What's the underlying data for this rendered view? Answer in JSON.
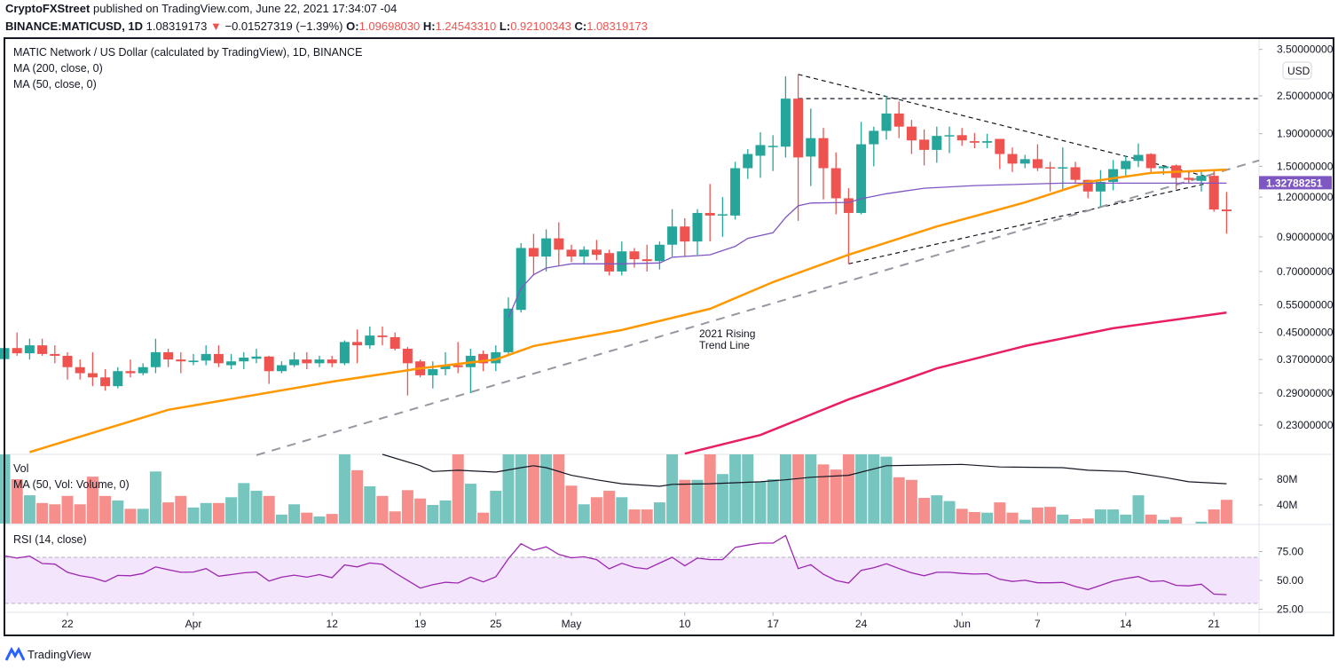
{
  "header": {
    "publisher": "CryptoFXStreet",
    "published_text": "published on TradingView.com, June 22, 2021 17:34:07 -04",
    "symbol": "BINANCE:MATICUSD, 1D",
    "last": "1.08319173",
    "change": "−0.01527319 (−1.39%)",
    "o_label": "O:",
    "o": "1.09698030",
    "h_label": "H:",
    "h": "1.24543310",
    "l_label": "L:",
    "l": "0.92100343",
    "c_label": "C:",
    "c": "1.08319173",
    "down_arrow": "▼"
  },
  "legend": {
    "title": "MATIC Network / US Dollar (calculated by TradingView), 1D, BINANCE",
    "ma200": "MA (200, close, 0)",
    "ma50": "MA (50, close, 0)",
    "vol": "Vol",
    "vol_ma": "MA (50, Vol: Volume, 0)",
    "rsi": "RSI (14, close)"
  },
  "colors": {
    "up": "#26a69a",
    "down": "#ef5350",
    "vol_up": "#76c6bf",
    "vol_down": "#f68f8c",
    "ma50": "#ff9800",
    "ma200": "#e91e63",
    "ma_purple": "#7e57c2",
    "vol_ma": "#131722",
    "rsi": "#9c27b0",
    "rsi_band": "#f3e5fc",
    "price_label_bg": "#7e57c2"
  },
  "chart_data": {
    "type": "candlestick",
    "price_scale": "log",
    "currency_badge": "USD",
    "price_ticks": [
      "3.50000000",
      "2.50000000",
      "1.90000000",
      "1.50000000",
      "1.20000000",
      "0.90000000",
      "0.70000000",
      "0.55000000",
      "0.45000000",
      "0.37000000",
      "0.29000000",
      "0.23000000"
    ],
    "price_label": "1.32788251",
    "time_ticks": [
      {
        "date": "2021-03-22",
        "label": "22"
      },
      {
        "date": "2021-04-01",
        "label": "Apr"
      },
      {
        "date": "2021-04-12",
        "label": "12"
      },
      {
        "date": "2021-04-19",
        "label": "19"
      },
      {
        "date": "2021-04-25",
        "label": "25"
      },
      {
        "date": "2021-05-01",
        "label": "May"
      },
      {
        "date": "2021-05-10",
        "label": "10"
      },
      {
        "date": "2021-05-17",
        "label": "17"
      },
      {
        "date": "2021-05-24",
        "label": "24"
      },
      {
        "date": "2021-06-01",
        "label": "Jun"
      },
      {
        "date": "2021-06-07",
        "label": "7"
      },
      {
        "date": "2021-06-14",
        "label": "14"
      },
      {
        "date": "2021-06-21",
        "label": "21"
      }
    ],
    "volume_ticks": [
      "80M",
      "40M"
    ],
    "rsi_ticks": [
      "75.00",
      "50.00",
      "25.00"
    ],
    "rsi_band": [
      30,
      70
    ],
    "columns": [
      "date",
      "open",
      "high",
      "low",
      "close",
      "volume_millions",
      "rsi"
    ],
    "candles": [
      [
        "2021-03-17",
        0.371,
        0.405,
        0.37,
        0.402,
        130,
        71.2
      ],
      [
        "2021-03-18",
        0.402,
        0.45,
        0.38,
        0.387,
        80,
        69.3
      ],
      [
        "2021-03-19",
        0.387,
        0.43,
        0.37,
        0.41,
        55,
        71.0
      ],
      [
        "2021-03-20",
        0.41,
        0.43,
        0.38,
        0.385,
        43,
        64.6
      ],
      [
        "2021-03-21",
        0.385,
        0.41,
        0.36,
        0.38,
        41,
        64.1
      ],
      [
        "2021-03-22",
        0.38,
        0.39,
        0.32,
        0.35,
        54,
        57.0
      ],
      [
        "2021-03-23",
        0.35,
        0.37,
        0.32,
        0.335,
        41,
        54.0
      ],
      [
        "2021-03-24",
        0.335,
        0.39,
        0.305,
        0.325,
        84,
        52.3
      ],
      [
        "2021-03-25",
        0.325,
        0.345,
        0.295,
        0.305,
        54,
        48.9
      ],
      [
        "2021-03-26",
        0.305,
        0.35,
        0.3,
        0.34,
        47,
        54.3
      ],
      [
        "2021-03-27",
        0.34,
        0.37,
        0.325,
        0.335,
        34,
        54.0
      ],
      [
        "2021-03-28",
        0.335,
        0.36,
        0.33,
        0.35,
        34,
        56.0
      ],
      [
        "2021-03-29",
        0.35,
        0.43,
        0.335,
        0.39,
        92,
        61.7
      ],
      [
        "2021-03-30",
        0.39,
        0.4,
        0.35,
        0.37,
        44,
        59.2
      ],
      [
        "2021-03-31",
        0.37,
        0.39,
        0.335,
        0.365,
        54,
        57.0
      ],
      [
        "2021-04-01",
        0.363,
        0.385,
        0.355,
        0.367,
        36,
        57.2
      ],
      [
        "2021-04-02",
        0.367,
        0.41,
        0.355,
        0.385,
        43,
        60.2
      ],
      [
        "2021-04-03",
        0.385,
        0.41,
        0.35,
        0.36,
        43,
        53.6
      ],
      [
        "2021-04-04",
        0.355,
        0.385,
        0.345,
        0.365,
        52,
        55.0
      ],
      [
        "2021-04-05",
        0.365,
        0.39,
        0.345,
        0.375,
        74,
        56.5
      ],
      [
        "2021-04-06",
        0.372,
        0.4,
        0.36,
        0.378,
        62,
        57.2
      ],
      [
        "2021-04-07",
        0.378,
        0.38,
        0.31,
        0.34,
        54,
        49.4
      ],
      [
        "2021-04-08",
        0.34,
        0.365,
        0.335,
        0.355,
        25,
        52.8
      ],
      [
        "2021-04-09",
        0.355,
        0.39,
        0.35,
        0.37,
        41,
        54.5
      ],
      [
        "2021-04-10",
        0.37,
        0.39,
        0.345,
        0.36,
        28,
        52.8
      ],
      [
        "2021-04-11",
        0.36,
        0.38,
        0.35,
        0.37,
        22,
        55.0
      ],
      [
        "2021-04-12",
        0.37,
        0.38,
        0.35,
        0.36,
        26,
        52.3
      ],
      [
        "2021-04-13",
        0.36,
        0.425,
        0.355,
        0.42,
        140,
        63.4
      ],
      [
        "2021-04-14",
        0.42,
        0.46,
        0.36,
        0.41,
        94,
        61.7
      ],
      [
        "2021-04-15",
        0.41,
        0.47,
        0.4,
        0.44,
        69,
        65.1
      ],
      [
        "2021-04-16",
        0.44,
        0.47,
        0.41,
        0.435,
        54,
        63.9
      ],
      [
        "2021-04-17",
        0.435,
        0.45,
        0.395,
        0.4,
        30,
        56.5
      ],
      [
        "2021-04-18",
        0.4,
        0.405,
        0.285,
        0.36,
        63,
        49.9
      ],
      [
        "2021-04-19",
        0.365,
        0.37,
        0.325,
        0.33,
        50,
        43.3
      ],
      [
        "2021-04-20",
        0.33,
        0.365,
        0.3,
        0.345,
        40,
        46.2
      ],
      [
        "2021-04-21",
        0.345,
        0.39,
        0.33,
        0.355,
        47,
        48.4
      ],
      [
        "2021-04-22",
        0.355,
        0.42,
        0.335,
        0.35,
        140,
        47.7
      ],
      [
        "2021-04-23",
        0.35,
        0.4,
        0.29,
        0.38,
        73,
        52.8
      ],
      [
        "2021-04-24",
        0.385,
        0.395,
        0.34,
        0.36,
        28,
        48.7
      ],
      [
        "2021-04-25",
        0.36,
        0.41,
        0.34,
        0.39,
        62,
        53.1
      ],
      [
        "2021-04-26",
        0.39,
        0.58,
        0.385,
        0.535,
        250,
        68.8
      ],
      [
        "2021-04-27",
        0.53,
        0.86,
        0.52,
        0.83,
        200,
        81.8
      ],
      [
        "2021-04-28",
        0.83,
        0.92,
        0.68,
        0.78,
        170,
        76.1
      ],
      [
        "2021-04-29",
        0.78,
        0.95,
        0.7,
        0.89,
        130,
        79.1
      ],
      [
        "2021-04-30",
        0.89,
        1.0,
        0.73,
        0.82,
        125,
        72.5
      ],
      [
        "2021-05-01",
        0.82,
        0.85,
        0.75,
        0.78,
        70,
        69.5
      ],
      [
        "2021-05-02",
        0.78,
        0.84,
        0.74,
        0.82,
        41,
        70.5
      ],
      [
        "2021-05-03",
        0.82,
        0.88,
        0.76,
        0.79,
        52,
        68.0
      ],
      [
        "2021-05-04",
        0.8,
        0.82,
        0.68,
        0.7,
        62,
        60.0
      ],
      [
        "2021-05-05",
        0.7,
        0.87,
        0.68,
        0.81,
        52,
        64.8
      ],
      [
        "2021-05-06",
        0.81,
        0.83,
        0.72,
        0.765,
        33,
        61.2
      ],
      [
        "2021-05-07",
        0.765,
        0.85,
        0.7,
        0.755,
        33,
        59.9
      ],
      [
        "2021-05-08",
        0.755,
        0.87,
        0.71,
        0.85,
        44,
        65.0
      ],
      [
        "2021-05-09",
        0.85,
        1.1,
        0.78,
        0.97,
        150,
        70.0
      ],
      [
        "2021-05-10",
        0.97,
        1.03,
        0.78,
        0.87,
        79,
        62.6
      ],
      [
        "2021-05-11",
        0.87,
        1.1,
        0.79,
        1.07,
        79,
        69.3
      ],
      [
        "2021-05-12",
        1.07,
        1.32,
        0.87,
        1.05,
        125,
        68.0
      ],
      [
        "2021-05-13",
        1.05,
        1.2,
        0.9,
        1.06,
        88,
        68.0
      ],
      [
        "2021-05-14",
        1.05,
        1.55,
        1.02,
        1.48,
        160,
        78.6
      ],
      [
        "2021-05-15",
        1.48,
        1.7,
        1.37,
        1.64,
        140,
        80.6
      ],
      [
        "2021-05-16",
        1.62,
        1.92,
        1.38,
        1.75,
        76,
        82.3
      ],
      [
        "2021-05-17",
        1.73,
        1.88,
        1.45,
        1.74,
        80,
        82.3
      ],
      [
        "2021-05-18",
        1.73,
        2.88,
        1.6,
        2.45,
        220,
        88.9
      ],
      [
        "2021-05-19",
        2.45,
        2.92,
        1.01,
        1.6,
        300,
        60.2
      ],
      [
        "2021-05-20",
        1.61,
        2.28,
        1.3,
        1.84,
        180,
        63.6
      ],
      [
        "2021-05-21",
        1.84,
        1.98,
        1.18,
        1.48,
        103,
        55.3
      ],
      [
        "2021-05-22",
        1.48,
        1.66,
        1.06,
        1.19,
        95,
        49.9
      ],
      [
        "2021-05-23",
        1.19,
        1.28,
        0.74,
        1.07,
        180,
        47.7
      ],
      [
        "2021-05-24",
        1.07,
        2.07,
        1.06,
        1.76,
        170,
        58.7
      ],
      [
        "2021-05-25",
        1.76,
        2.0,
        1.5,
        1.94,
        120,
        60.9
      ],
      [
        "2021-05-26",
        1.94,
        2.5,
        1.82,
        2.2,
        115,
        64.4
      ],
      [
        "2021-05-27",
        2.2,
        2.4,
        1.84,
        2.0,
        83,
        60.2
      ],
      [
        "2021-05-28",
        2.0,
        2.1,
        1.64,
        1.81,
        79,
        56.5
      ],
      [
        "2021-05-29",
        1.82,
        1.96,
        1.51,
        1.69,
        51,
        54.0
      ],
      [
        "2021-05-30",
        1.69,
        2.0,
        1.54,
        1.87,
        55,
        57.0
      ],
      [
        "2021-05-31",
        1.87,
        2.0,
        1.65,
        1.88,
        46,
        57.0
      ],
      [
        "2021-06-01",
        1.88,
        1.98,
        1.74,
        1.81,
        34,
        56.0
      ],
      [
        "2021-06-02",
        1.8,
        1.91,
        1.71,
        1.78,
        29,
        55.5
      ],
      [
        "2021-06-03",
        1.78,
        1.9,
        1.71,
        1.8,
        28,
        55.8
      ],
      [
        "2021-06-04",
        1.83,
        1.83,
        1.47,
        1.64,
        44,
        50.9
      ],
      [
        "2021-06-05",
        1.64,
        1.72,
        1.44,
        1.53,
        28,
        49.1
      ],
      [
        "2021-06-06",
        1.53,
        1.63,
        1.48,
        1.58,
        17,
        50.1
      ],
      [
        "2021-06-07",
        1.58,
        1.76,
        1.45,
        1.48,
        36,
        47.9
      ],
      [
        "2021-06-08",
        1.49,
        1.55,
        1.25,
        1.48,
        37,
        47.9
      ],
      [
        "2021-06-09",
        1.48,
        1.72,
        1.26,
        1.49,
        25,
        48.2
      ],
      [
        "2021-06-10",
        1.49,
        1.55,
        1.32,
        1.36,
        18,
        44.7
      ],
      [
        "2021-06-11",
        1.36,
        1.36,
        1.19,
        1.25,
        19,
        42.0
      ],
      [
        "2021-06-12",
        1.25,
        1.46,
        1.12,
        1.34,
        33,
        45.7
      ],
      [
        "2021-06-13",
        1.34,
        1.57,
        1.26,
        1.47,
        33,
        49.4
      ],
      [
        "2021-06-14",
        1.47,
        1.62,
        1.4,
        1.56,
        25,
        51.6
      ],
      [
        "2021-06-15",
        1.56,
        1.77,
        1.49,
        1.63,
        55,
        53.3
      ],
      [
        "2021-06-16",
        1.64,
        1.65,
        1.43,
        1.48,
        25,
        48.9
      ],
      [
        "2021-06-17",
        1.48,
        1.5,
        1.41,
        1.5,
        17,
        49.6
      ],
      [
        "2021-06-18",
        1.51,
        1.52,
        1.27,
        1.38,
        21,
        45.7
      ],
      [
        "2021-06-19",
        1.38,
        1.45,
        1.32,
        1.36,
        10,
        45.2
      ],
      [
        "2021-06-20",
        1.35,
        1.45,
        1.25,
        1.4,
        14,
        46.7
      ],
      [
        "2021-06-21",
        1.4,
        1.45,
        1.08,
        1.097,
        33,
        38.1
      ],
      [
        "2021-06-22",
        1.0969803,
        1.2454331,
        0.92100343,
        1.08319173,
        48,
        37.6
      ]
    ],
    "ma50": [
      [
        "2021-03-19",
        0.189
      ],
      [
        "2021-03-30",
        0.257
      ],
      [
        "2021-04-12",
        0.315
      ],
      [
        "2021-04-19",
        0.347
      ],
      [
        "2021-04-25",
        0.37
      ],
      [
        "2021-04-28",
        0.408
      ],
      [
        "2021-05-05",
        0.458
      ],
      [
        "2021-05-12",
        0.534
      ],
      [
        "2021-05-17",
        0.648
      ],
      [
        "2021-05-23",
        0.79
      ],
      [
        "2021-05-30",
        0.97
      ],
      [
        "2021-06-06",
        1.155
      ],
      [
        "2021-06-11",
        1.34
      ],
      [
        "2021-06-16",
        1.43
      ],
      [
        "2021-06-22",
        1.465
      ]
    ],
    "ma200": [
      [
        "2021-05-10",
        0.187
      ],
      [
        "2021-05-16",
        0.214
      ],
      [
        "2021-05-23",
        0.277
      ],
      [
        "2021-05-30",
        0.347
      ],
      [
        "2021-06-06",
        0.408
      ],
      [
        "2021-06-13",
        0.464
      ],
      [
        "2021-06-22",
        0.52
      ]
    ],
    "ma_purple": [
      [
        "2021-04-26",
        0.5
      ],
      [
        "2021-04-27",
        0.62
      ],
      [
        "2021-04-28",
        0.684
      ],
      [
        "2021-04-29",
        0.718
      ],
      [
        "2021-05-01",
        0.74
      ],
      [
        "2021-05-05",
        0.74
      ],
      [
        "2021-05-08",
        0.745
      ],
      [
        "2021-05-09",
        0.776
      ],
      [
        "2021-05-12",
        0.79
      ],
      [
        "2021-05-14",
        0.84
      ],
      [
        "2021-05-15",
        0.89
      ],
      [
        "2021-05-17",
        0.927
      ],
      [
        "2021-05-18",
        1.035
      ],
      [
        "2021-05-19",
        1.127
      ],
      [
        "2021-05-20",
        1.15
      ],
      [
        "2021-05-23",
        1.155
      ],
      [
        "2021-05-24",
        1.186
      ],
      [
        "2021-05-26",
        1.23
      ],
      [
        "2021-05-29",
        1.28
      ],
      [
        "2021-06-02",
        1.305
      ],
      [
        "2021-06-09",
        1.3279
      ],
      [
        "2021-06-22",
        1.32788251
      ]
    ],
    "vol_ma": [
      [
        "2021-04-16",
        119
      ],
      [
        "2021-04-19",
        101
      ],
      [
        "2021-04-20",
        92
      ],
      [
        "2021-04-22",
        94
      ],
      [
        "2021-04-25",
        91
      ],
      [
        "2021-04-27",
        98
      ],
      [
        "2021-04-28",
        101
      ],
      [
        "2021-04-29",
        98
      ],
      [
        "2021-05-01",
        86
      ],
      [
        "2021-05-03",
        79
      ],
      [
        "2021-05-05",
        73
      ],
      [
        "2021-05-08",
        69
      ],
      [
        "2021-05-09",
        72
      ],
      [
        "2021-05-12",
        73
      ],
      [
        "2021-05-16",
        76
      ],
      [
        "2021-05-18",
        79
      ],
      [
        "2021-05-20",
        83
      ],
      [
        "2021-05-23",
        86
      ],
      [
        "2021-05-26",
        101
      ],
      [
        "2021-06-01",
        103
      ],
      [
        "2021-06-04",
        99
      ],
      [
        "2021-06-09",
        98
      ],
      [
        "2021-06-11",
        94
      ],
      [
        "2021-06-14",
        92
      ],
      [
        "2021-06-17",
        83
      ],
      [
        "2021-06-19",
        76
      ],
      [
        "2021-06-22",
        73
      ]
    ],
    "trendlines": [
      {
        "style": "black-dashed",
        "from": [
          "2021-05-19",
          2.92
        ],
        "to": [
          "2021-06-21",
          1.375
        ]
      },
      {
        "style": "black-dashed",
        "from": [
          "2021-05-19",
          2.45
        ],
        "to": [
          "2021-06-25",
          2.45
        ]
      },
      {
        "style": "black-dashed",
        "from": [
          "2021-05-23",
          0.74
        ],
        "to": [
          "2021-06-21",
          1.34
        ]
      },
      {
        "style": "grey-dashed",
        "from": [
          "2021-04-06",
          0.185
        ],
        "to": [
          "2021-06-25",
          1.566
        ]
      }
    ],
    "annotation": {
      "line1": "2021 Rising",
      "line2": "Trend Line",
      "date": "2021-05-10",
      "price": 0.44
    }
  },
  "footer": {
    "brand": "TradingView"
  }
}
